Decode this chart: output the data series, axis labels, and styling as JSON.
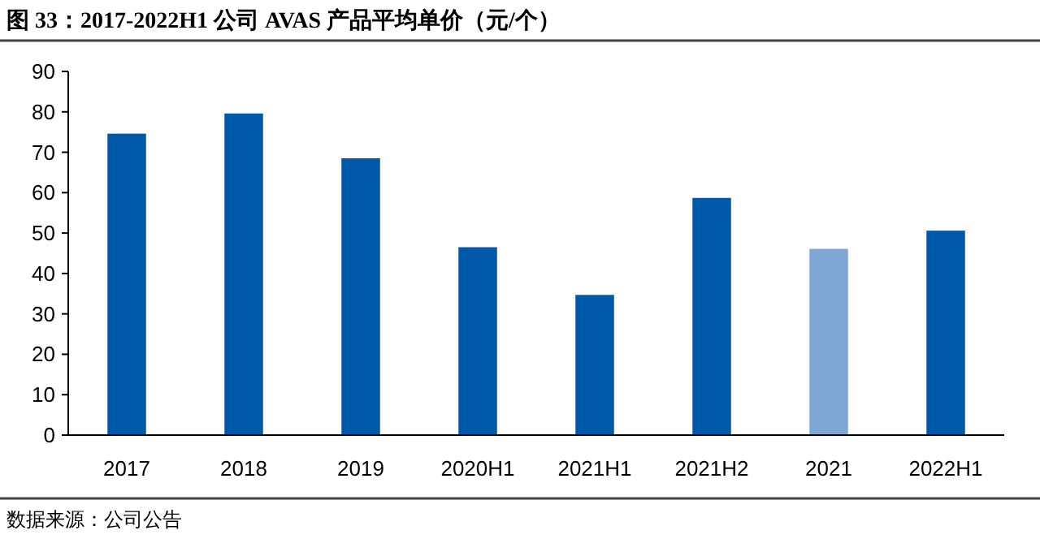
{
  "chart_data": {
    "type": "bar",
    "title": "图 33：2017-2022H1 公司 AVAS 产品平均单价（元/个）",
    "categories": [
      "2017",
      "2018",
      "2019",
      "2020H1",
      "2021H1",
      "2021H2",
      "2021",
      "2022H1"
    ],
    "values": [
      74.6,
      79.6,
      68.5,
      46.5,
      34.7,
      58.7,
      46.1,
      50.6
    ],
    "colors": [
      "#0058a8",
      "#0058a8",
      "#0058a8",
      "#0058a8",
      "#0058a8",
      "#0058a8",
      "#7fa6d4",
      "#0058a8"
    ],
    "ylim": [
      0,
      90
    ],
    "yticks": [
      0,
      10,
      20,
      30,
      40,
      50,
      60,
      70,
      80,
      90
    ],
    "annotations": [
      "数据来源：公司公告"
    ]
  }
}
